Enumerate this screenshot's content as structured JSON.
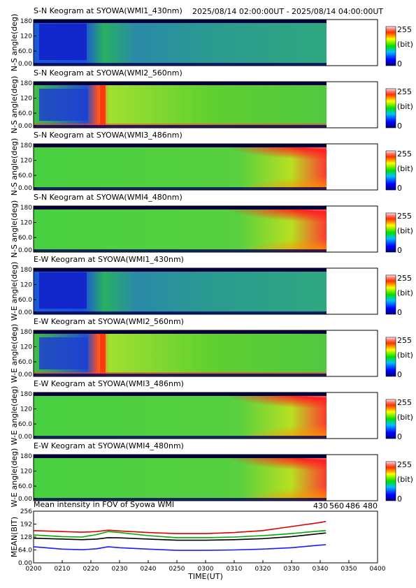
{
  "header": {
    "time_range": "2025/08/14 02:00:00UT - 2025/08/14 04:00:00UT"
  },
  "colors": {
    "c430": "#1a1aff",
    "c560": "#00aa00",
    "c486": "#dd0000",
    "c480": "#000000"
  },
  "chart_data": [
    {
      "type": "heatmap",
      "title": "S-N Keogram at SYOWA(WMI1_430nm)",
      "ylabel": "N-S angle(deg)",
      "yticks": [
        "180",
        "120",
        "60.0",
        "0.00"
      ],
      "colorbar": {
        "max": "255",
        "unit": "(bit)",
        "min": "0"
      },
      "ylim": [
        0,
        180
      ],
      "image": "wmi1_430"
    },
    {
      "type": "heatmap",
      "title": "S-N Keogram at SYOWA(WMI2_560nm)",
      "ylabel": "N-S angle(deg)",
      "yticks": [
        "180",
        "120",
        "60.0",
        "0.00"
      ],
      "colorbar": {
        "max": "255",
        "unit": "(bit)",
        "min": "0"
      },
      "ylim": [
        0,
        180
      ],
      "image": "wmi2_560"
    },
    {
      "type": "heatmap",
      "title": "S-N Keogram at SYOWA(WMI3_486nm)",
      "ylabel": "N-S angle(deg)",
      "yticks": [
        "180",
        "120",
        "60.0",
        "0.00"
      ],
      "colorbar": {
        "max": "255",
        "unit": "(bit)",
        "min": "0"
      },
      "ylim": [
        0,
        180
      ],
      "image": "wmi3_486"
    },
    {
      "type": "heatmap",
      "title": "S-N Keogram at SYOWA(WMI4_480nm)",
      "ylabel": "N-S angle(deg)",
      "yticks": [
        "180",
        "120",
        "60.0",
        "0.00"
      ],
      "colorbar": {
        "max": "255",
        "unit": "(bit)",
        "min": "0"
      },
      "ylim": [
        0,
        180
      ],
      "image": "wmi4_480"
    },
    {
      "type": "heatmap",
      "title": "E-W Keogram at SYOWA(WMI1_430nm)",
      "ylabel": "W-E angle(deg)",
      "yticks": [
        "180",
        "120",
        "60.0",
        "0.00"
      ],
      "colorbar": {
        "max": "255",
        "unit": "(bit)",
        "min": "0"
      },
      "ylim": [
        0,
        180
      ],
      "image": "wmi1_430"
    },
    {
      "type": "heatmap",
      "title": "E-W Keogram at SYOWA(WMI2_560nm)",
      "ylabel": "W-E angle(deg)",
      "yticks": [
        "180",
        "120",
        "60.0",
        "0.00"
      ],
      "colorbar": {
        "max": "255",
        "unit": "(bit)",
        "min": "0"
      },
      "ylim": [
        0,
        180
      ],
      "image": "wmi2_560"
    },
    {
      "type": "heatmap",
      "title": "E-W Keogram at SYOWA(WMI3_486nm)",
      "ylabel": "W-E angle(deg)",
      "yticks": [
        "180",
        "120",
        "60.0",
        "0.00"
      ],
      "colorbar": {
        "max": "255",
        "unit": "(bit)",
        "min": "0"
      },
      "ylim": [
        0,
        180
      ],
      "image": "wmi3_486"
    },
    {
      "type": "heatmap",
      "title": "E-W Keogram at SYOWA(WMI4_480nm)",
      "ylabel": "W-E angle(deg)",
      "yticks": [
        "180",
        "120",
        "60.0",
        "0.00"
      ],
      "colorbar": {
        "max": "255",
        "unit": "(bit)",
        "min": "0"
      },
      "ylim": [
        0,
        180
      ],
      "image": "wmi4_480"
    },
    {
      "type": "line",
      "title": "Mean intensity in FOV of Syowa WMI",
      "ylabel": "MEAN(BIT)",
      "xlabel": "TIME(UT)",
      "ylim": [
        0,
        256
      ],
      "yticks": [
        "256",
        "192",
        "128",
        "64.0",
        "0.00"
      ],
      "xticks": [
        "0200",
        "0210",
        "0220",
        "0230",
        "0240",
        "0250",
        "0300",
        "0310",
        "0320",
        "0330",
        "0340",
        "0350",
        "0400"
      ],
      "legend": [
        "430",
        "560",
        "486",
        "480"
      ],
      "x_minutes": [
        0,
        10,
        17,
        22,
        26,
        30,
        40,
        50,
        60,
        70,
        80,
        90,
        100,
        102
      ],
      "series": [
        {
          "name": "486",
          "color": "#dd0000",
          "values": [
            160,
            155,
            152,
            155,
            162,
            158,
            150,
            145,
            145,
            150,
            160,
            180,
            200,
            205
          ]
        },
        {
          "name": "560",
          "color": "#00aa00",
          "values": [
            138,
            130,
            128,
            140,
            155,
            150,
            135,
            125,
            125,
            128,
            135,
            145,
            158,
            160
          ]
        },
        {
          "name": "480",
          "color": "#000000",
          "values": [
            122,
            118,
            115,
            118,
            125,
            124,
            118,
            112,
            112,
            115,
            120,
            130,
            145,
            148
          ]
        },
        {
          "name": "430",
          "color": "#1a1aff",
          "values": [
            80,
            68,
            65,
            70,
            80,
            75,
            68,
            62,
            62,
            64,
            68,
            75,
            88,
            90
          ]
        }
      ]
    }
  ]
}
